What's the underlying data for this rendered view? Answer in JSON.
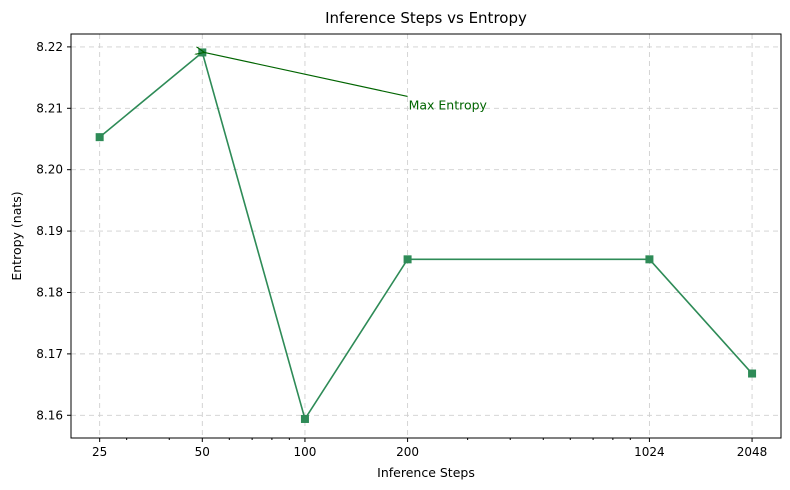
{
  "chart_data": {
    "type": "line",
    "title": "Inference Steps vs Entropy",
    "xlabel": "Inference Steps",
    "ylabel": "Entropy (nats)",
    "x_scale": "log",
    "x": [
      25,
      50,
      100,
      200,
      1024,
      2048
    ],
    "x_tick_labels": [
      "25",
      "50",
      "100",
      "200",
      "1024",
      "2048"
    ],
    "y_ticks": [
      8.16,
      8.17,
      8.18,
      8.19,
      8.2,
      8.21,
      8.22
    ],
    "y_tick_labels": [
      "8.16",
      "8.17",
      "8.18",
      "8.19",
      "8.20",
      "8.21",
      "8.22"
    ],
    "ylim": [
      8.1563,
      8.2221
    ],
    "xlim": [
      20.6,
      2490
    ],
    "grid": true,
    "series": [
      {
        "values": [
          8.2053,
          8.2191,
          8.1594,
          8.1854,
          8.1854,
          8.1668
        ],
        "color": "#2e8b57",
        "marker": "square"
      }
    ],
    "annotation": {
      "text": "Max Entropy",
      "point": [
        50,
        8.2191
      ],
      "text_position": [
        200,
        8.2103
      ],
      "color": "#006400"
    }
  }
}
